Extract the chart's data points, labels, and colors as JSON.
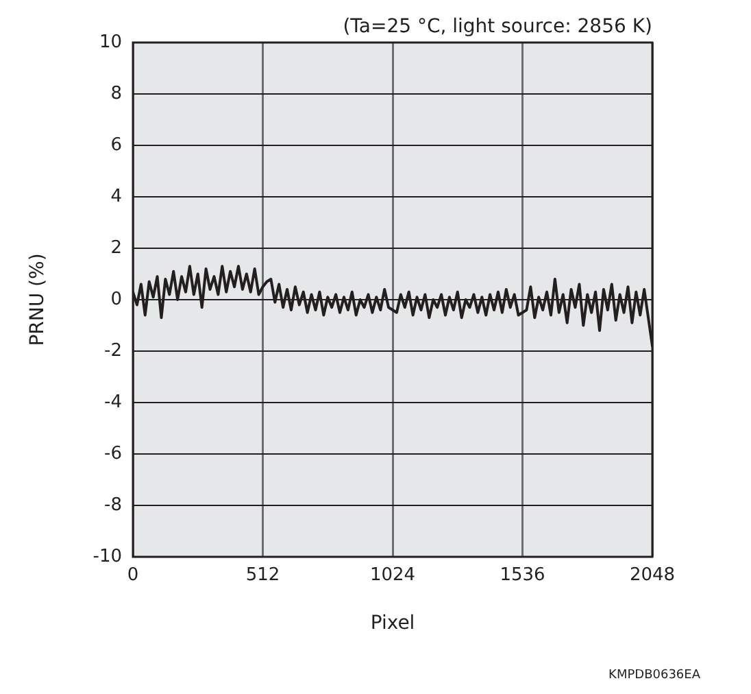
{
  "chart_data": {
    "type": "line",
    "title": "(Ta=25 °C, light source: 2856 K)",
    "xlabel": "Pixel",
    "ylabel": "PRNU (%)",
    "annotations": [
      "KMPDB0636EA"
    ],
    "x": [
      0,
      16,
      32,
      48,
      64,
      80,
      96,
      112,
      128,
      144,
      160,
      176,
      192,
      208,
      224,
      240,
      256,
      272,
      288,
      304,
      320,
      336,
      352,
      368,
      384,
      400,
      416,
      432,
      448,
      464,
      480,
      496,
      512,
      528,
      544,
      560,
      576,
      592,
      608,
      624,
      640,
      656,
      672,
      688,
      704,
      720,
      736,
      752,
      768,
      784,
      800,
      816,
      832,
      848,
      864,
      880,
      896,
      912,
      928,
      944,
      960,
      976,
      992,
      1008,
      1024,
      1040,
      1056,
      1072,
      1088,
      1104,
      1120,
      1136,
      1152,
      1168,
      1184,
      1200,
      1216,
      1232,
      1248,
      1264,
      1280,
      1296,
      1312,
      1328,
      1344,
      1360,
      1376,
      1392,
      1408,
      1424,
      1440,
      1456,
      1472,
      1488,
      1504,
      1520,
      1536,
      1552,
      1568,
      1584,
      1600,
      1616,
      1632,
      1648,
      1664,
      1680,
      1696,
      1712,
      1728,
      1744,
      1760,
      1776,
      1792,
      1808,
      1824,
      1840,
      1856,
      1872,
      1888,
      1904,
      1920,
      1936,
      1952,
      1968,
      1984,
      2000,
      2016,
      2032,
      2048
    ],
    "series": [
      {
        "color": "#231f20",
        "values": [
          0.3,
          -0.2,
          0.6,
          -0.6,
          0.7,
          0.1,
          0.9,
          -0.7,
          0.8,
          0.2,
          1.1,
          0.0,
          0.9,
          0.3,
          1.3,
          0.2,
          1.0,
          -0.3,
          1.2,
          0.4,
          0.9,
          0.2,
          1.3,
          0.3,
          1.1,
          0.5,
          1.3,
          0.4,
          1.0,
          0.3,
          1.2,
          0.2,
          0.5,
          0.7,
          0.8,
          -0.1,
          0.6,
          -0.3,
          0.4,
          -0.4,
          0.5,
          -0.2,
          0.3,
          -0.5,
          0.2,
          -0.4,
          0.3,
          -0.6,
          0.1,
          -0.3,
          0.2,
          -0.5,
          0.1,
          -0.4,
          0.3,
          -0.6,
          0.0,
          -0.3,
          0.2,
          -0.5,
          0.1,
          -0.4,
          0.4,
          -0.3,
          -0.4,
          -0.5,
          0.2,
          -0.3,
          0.3,
          -0.6,
          0.1,
          -0.4,
          0.2,
          -0.7,
          0.0,
          -0.3,
          0.2,
          -0.6,
          0.1,
          -0.4,
          0.3,
          -0.7,
          0.0,
          -0.3,
          0.2,
          -0.5,
          0.1,
          -0.6,
          0.2,
          -0.4,
          0.3,
          -0.5,
          0.4,
          -0.3,
          0.2,
          -0.6,
          -0.5,
          -0.4,
          0.5,
          -0.7,
          0.1,
          -0.4,
          0.3,
          -0.6,
          0.8,
          -0.5,
          0.2,
          -0.9,
          0.4,
          -0.3,
          0.6,
          -1.0,
          0.2,
          -0.5,
          0.3,
          -1.2,
          0.4,
          -0.4,
          0.6,
          -0.8,
          0.2,
          -0.5,
          0.5,
          -0.9,
          0.3,
          -0.6,
          0.4,
          -0.7,
          -1.8
        ]
      }
    ],
    "xlim": [
      0,
      2048
    ],
    "xticks": [
      0,
      512,
      1024,
      1536,
      2048
    ],
    "ylim": [
      -10,
      10
    ],
    "yticks": [
      -10,
      -8,
      -6,
      -4,
      -2,
      0,
      2,
      4,
      6,
      8,
      10
    ],
    "grid": true,
    "legend": false,
    "marker": "none",
    "line_style": "solid"
  }
}
